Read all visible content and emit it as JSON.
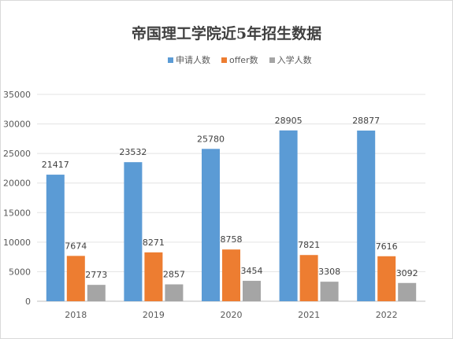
{
  "chart_data": {
    "type": "bar",
    "title": "帝国理工学院近5年招生数据",
    "categories": [
      "2018",
      "2019",
      "2020",
      "2021",
      "2022"
    ],
    "series": [
      {
        "name": "申请人数",
        "color": "#5b9bd5",
        "values": [
          21417,
          23532,
          25780,
          28905,
          28877
        ]
      },
      {
        "name": "offer数",
        "color": "#ed7d31",
        "values": [
          7674,
          8271,
          8758,
          7821,
          7616
        ]
      },
      {
        "name": "入学人数",
        "color": "#a5a5a5",
        "values": [
          2773,
          2857,
          3454,
          3308,
          3092
        ]
      }
    ],
    "ylim": [
      0,
      35000
    ],
    "yticks": [
      0,
      5000,
      10000,
      15000,
      20000,
      25000,
      30000,
      35000
    ],
    "grid": true,
    "legend": "top-center"
  }
}
